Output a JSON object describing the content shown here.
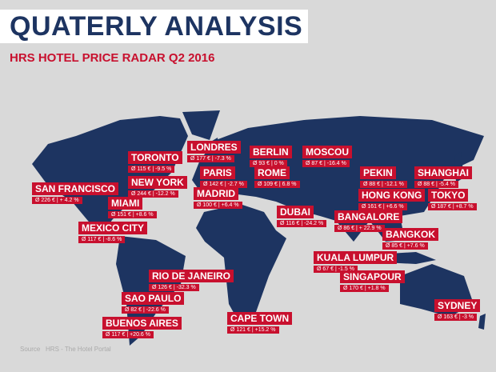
{
  "header": {
    "title": "QUATERLY ANALYSIS",
    "subtitle": "HRS HOTEL PRICE RADAR Q2 2016"
  },
  "cities": [
    {
      "name": "LONDRES",
      "stats": "Ø 177 € | -7.3 %"
    },
    {
      "name": "BERLIN",
      "stats": "Ø 93 € | 0 %"
    },
    {
      "name": "MOSCOU",
      "stats": "Ø 87 € | -16.4 %"
    },
    {
      "name": "TORONTO",
      "stats": "Ø 115 € | -9.5 %"
    },
    {
      "name": "PARIS",
      "stats": "Ø 142 € | -2.7 %"
    },
    {
      "name": "ROME",
      "stats": "Ø 109 € | 6.8 %"
    },
    {
      "name": "NEW YORK",
      "stats": "Ø 244 € | -12.2 %"
    },
    {
      "name": "PEKIN",
      "stats": "Ø 88 € | -12.1 %"
    },
    {
      "name": "SHANGHAI",
      "stats": "Ø 88 € | -5.4 %"
    },
    {
      "name": "SAN FRANCISCO",
      "stats": "Ø 226 € | + 4.2 %"
    },
    {
      "name": "MADRID",
      "stats": "Ø 100 € | +6.4 %"
    },
    {
      "name": "HONG KONG",
      "stats": "Ø 161 € | +6.6 %"
    },
    {
      "name": "TOKYO",
      "stats": "Ø 187 € | +8.7 %"
    },
    {
      "name": "MIAMI",
      "stats": "Ø 151 € | +8.6 %"
    },
    {
      "name": "DUBAI",
      "stats": "Ø 116 € | -24.2 %"
    },
    {
      "name": "BANGALORE",
      "stats": "Ø 86 € | + 22.9 %"
    },
    {
      "name": "MEXICO CITY",
      "stats": "Ø 117 € | -8.6 %"
    },
    {
      "name": "BANGKOK",
      "stats": "Ø 85 € | +7.6 %"
    },
    {
      "name": "KUALA LUMPUR",
      "stats": "Ø 67 € | -1.5 %"
    },
    {
      "name": "RIO DE JANEIRO",
      "stats": "Ø 126 € | -32.3 %"
    },
    {
      "name": "SINGAPOUR",
      "stats": "Ø 170 € | +1.8 %"
    },
    {
      "name": "SAO PAULO",
      "stats": "Ø 82 € | -22.6 %"
    },
    {
      "name": "SYDNEY",
      "stats": "Ø 163 € | -3 %"
    },
    {
      "name": "CAPE TOWN",
      "stats": "Ø 121 € | +15.2 %"
    },
    {
      "name": "BUENOS AIRES",
      "stats": "Ø 117 € | +20.6 %"
    }
  ],
  "footer": {
    "source": "Source   HRS - The Hotel Portal"
  }
}
